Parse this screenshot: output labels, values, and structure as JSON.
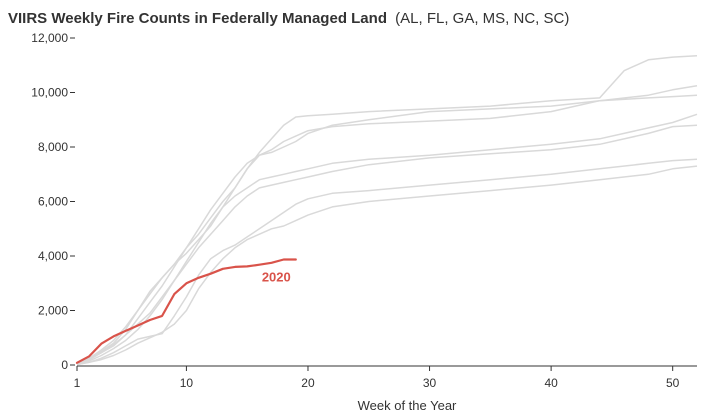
{
  "chart_data": {
    "type": "line",
    "title": "VIIRS Weekly Fire Counts in Federally Managed Land",
    "subtitle": "(AL, FL, GA, MS, NC, SC)",
    "xlabel": "Week of the Year",
    "ylabel": "",
    "xlim": [
      1,
      52
    ],
    "ylim": [
      0,
      12000
    ],
    "x_ticks": [
      1,
      10,
      20,
      30,
      40,
      50
    ],
    "y_ticks": [
      0,
      2000,
      4000,
      6000,
      8000,
      10000,
      12000
    ],
    "y_tick_labels": [
      "0",
      "2,000",
      "4,000",
      "6,000",
      "8,000",
      "10,000",
      "12,000"
    ],
    "grid": false,
    "colors": {
      "highlight": "#d9534a",
      "background_series": "#d9d9d9",
      "axis": "#333333",
      "text": "#333333"
    },
    "highlight_series": "2020",
    "series": [
      {
        "name": "2020",
        "highlight": true,
        "x": [
          1,
          2,
          3,
          4,
          5,
          6,
          7,
          8,
          9,
          10,
          11,
          12,
          13,
          14,
          15,
          16,
          17,
          18,
          19
        ],
        "values": [
          80,
          320,
          780,
          1050,
          1250,
          1450,
          1650,
          1800,
          2600,
          3000,
          3200,
          3350,
          3530,
          3600,
          3620,
          3680,
          3750,
          3870,
          3870
        ]
      },
      {
        "name": "",
        "highlight": false,
        "x": [
          1,
          2,
          3,
          4,
          5,
          6,
          7,
          8,
          9,
          10,
          11,
          12,
          13,
          14,
          15,
          16,
          17,
          18,
          19,
          20,
          22,
          25,
          30,
          35,
          40,
          44,
          46,
          48,
          50,
          52
        ],
        "values": [
          50,
          250,
          500,
          800,
          1300,
          2000,
          2700,
          3200,
          3700,
          4300,
          4800,
          5400,
          6000,
          6500,
          7200,
          7800,
          8300,
          8800,
          9100,
          9150,
          9200,
          9300,
          9400,
          9500,
          9700,
          9800,
          10800,
          11200,
          11300,
          11350
        ]
      },
      {
        "name": "",
        "highlight": false,
        "x": [
          1,
          2,
          3,
          4,
          5,
          6,
          7,
          8,
          9,
          10,
          11,
          12,
          13,
          14,
          15,
          16,
          17,
          18,
          19,
          20,
          22,
          25,
          30,
          35,
          40,
          44,
          48,
          50,
          52
        ],
        "values": [
          30,
          200,
          450,
          700,
          1100,
          1700,
          2300,
          2900,
          3600,
          4300,
          5000,
          5700,
          6300,
          6900,
          7400,
          7700,
          7800,
          8000,
          8200,
          8500,
          8800,
          9000,
          9300,
          9400,
          9500,
          9700,
          9900,
          10100,
          10250
        ]
      },
      {
        "name": "",
        "highlight": false,
        "x": [
          1,
          2,
          3,
          4,
          5,
          6,
          7,
          8,
          9,
          10,
          11,
          12,
          13,
          14,
          15,
          16,
          17,
          18,
          19,
          20,
          22,
          25,
          30,
          35,
          40,
          42,
          44,
          48,
          50,
          52
        ],
        "values": [
          60,
          250,
          550,
          900,
          1400,
          2000,
          2600,
          3200,
          3700,
          4100,
          4600,
          5100,
          5800,
          6500,
          7200,
          7700,
          7900,
          8200,
          8400,
          8600,
          8750,
          8850,
          8950,
          9050,
          9300,
          9500,
          9700,
          9800,
          9850,
          9900
        ]
      },
      {
        "name": "",
        "highlight": false,
        "x": [
          1,
          2,
          3,
          4,
          5,
          6,
          7,
          8,
          9,
          10,
          11,
          12,
          13,
          14,
          15,
          16,
          17,
          18,
          19,
          20,
          22,
          25,
          30,
          35,
          40,
          44,
          48,
          50,
          52
        ],
        "values": [
          40,
          200,
          450,
          750,
          1100,
          1500,
          1900,
          2500,
          3100,
          3800,
          4500,
          5200,
          5800,
          6200,
          6500,
          6800,
          6900,
          7000,
          7100,
          7200,
          7400,
          7550,
          7700,
          7900,
          8100,
          8300,
          8700,
          8900,
          9200
        ]
      },
      {
        "name": "",
        "highlight": false,
        "x": [
          1,
          2,
          3,
          4,
          5,
          6,
          7,
          8,
          9,
          10,
          11,
          12,
          13,
          14,
          15,
          16,
          17,
          18,
          19,
          20,
          22,
          25,
          30,
          35,
          40,
          44,
          48,
          50,
          52
        ],
        "values": [
          30,
          150,
          350,
          600,
          900,
          1300,
          1800,
          2400,
          3100,
          3700,
          4300,
          4800,
          5300,
          5800,
          6200,
          6500,
          6600,
          6700,
          6800,
          6900,
          7100,
          7350,
          7600,
          7750,
          7900,
          8100,
          8500,
          8750,
          8800
        ]
      },
      {
        "name": "",
        "highlight": false,
        "x": [
          1,
          2,
          3,
          4,
          5,
          6,
          7,
          8,
          9,
          10,
          11,
          12,
          13,
          14,
          15,
          16,
          17,
          18,
          19,
          20,
          22,
          25,
          30,
          35,
          40,
          44,
          48,
          50,
          52
        ],
        "values": [
          20,
          100,
          250,
          450,
          700,
          950,
          1050,
          1150,
          1800,
          2500,
          3300,
          3900,
          4200,
          4400,
          4700,
          5000,
          5300,
          5600,
          5900,
          6100,
          6300,
          6400,
          6600,
          6800,
          7000,
          7200,
          7400,
          7500,
          7550
        ]
      },
      {
        "name": "",
        "highlight": false,
        "x": [
          1,
          2,
          3,
          4,
          5,
          6,
          7,
          8,
          9,
          10,
          11,
          12,
          13,
          14,
          15,
          16,
          17,
          18,
          19,
          20,
          22,
          25,
          30,
          35,
          40,
          44,
          48,
          50,
          52
        ],
        "values": [
          20,
          100,
          200,
          350,
          550,
          800,
          1000,
          1200,
          1500,
          2000,
          2800,
          3400,
          3900,
          4300,
          4600,
          4800,
          5000,
          5100,
          5300,
          5500,
          5800,
          6000,
          6200,
          6400,
          6600,
          6800,
          7000,
          7200,
          7300
        ]
      }
    ]
  },
  "labels": {
    "highlight_label": "2020"
  }
}
